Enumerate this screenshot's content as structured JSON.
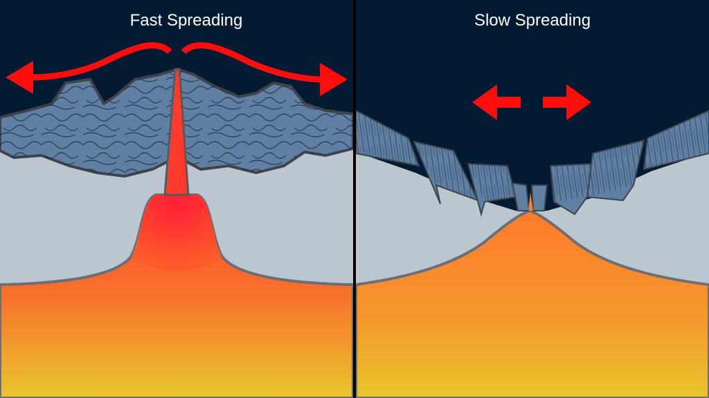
{
  "panels": [
    {
      "title": "Fast Spreading"
    },
    {
      "title": "Slow Spreading"
    }
  ],
  "colors": {
    "ocean": "#031a33",
    "crust": "#bcc6cf",
    "basalt": "#5f7fa3",
    "outline": "#5a5f66",
    "magma": "#ff2a30",
    "mantle_top": "#ff5a2a",
    "mantle_bottom": "#e9c62c",
    "arrow": "#ff0d0d",
    "divider": "#000000"
  }
}
